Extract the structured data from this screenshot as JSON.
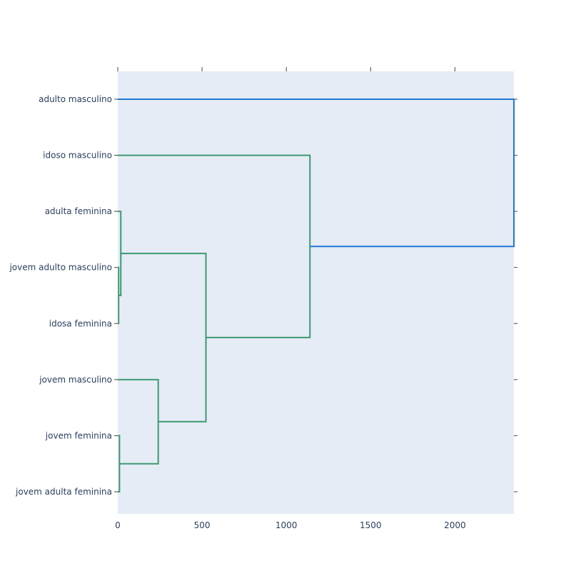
{
  "chart_data": {
    "type": "dendrogram",
    "orientation": "horizontal",
    "title": "",
    "xlabel": "",
    "ylabel": "",
    "xlim": [
      0,
      2350
    ],
    "x_ticks": [
      0,
      500,
      1000,
      1500,
      2000
    ],
    "x_tick_labels": [
      "0",
      "500",
      "1000",
      "1500",
      "2000"
    ],
    "leaves": [
      "adulto masculino",
      "idoso masculino",
      "adulta feminina",
      "jovem adulto masculino",
      "idosa feminina",
      "jovem masculino",
      "jovem feminina",
      "jovem adulta feminina"
    ],
    "links": [
      {
        "color": "green",
        "left": {
          "pos": 3,
          "dist": 0
        },
        "right": {
          "pos": 4,
          "dist": 0
        },
        "height": 5
      },
      {
        "color": "green",
        "left": {
          "pos": 2,
          "dist": 0
        },
        "right": {
          "pos": 3.5,
          "dist": 5
        },
        "height": 18
      },
      {
        "color": "green",
        "left": {
          "pos": 6,
          "dist": 0
        },
        "right": {
          "pos": 7,
          "dist": 0
        },
        "height": 10
      },
      {
        "color": "green",
        "left": {
          "pos": 5,
          "dist": 0
        },
        "right": {
          "pos": 6.5,
          "dist": 10
        },
        "height": 240
      },
      {
        "color": "green",
        "left": {
          "pos": 2.75,
          "dist": 18
        },
        "right": {
          "pos": 5.75,
          "dist": 240
        },
        "height": 523
      },
      {
        "color": "green",
        "left": {
          "pos": 1,
          "dist": 0
        },
        "right": {
          "pos": 4.25,
          "dist": 523
        },
        "height": 1140
      },
      {
        "color": "blue",
        "left": {
          "pos": 0,
          "dist": 0
        },
        "right": {
          "pos": 2.625,
          "dist": 1140
        },
        "height": 2350
      }
    ],
    "colors": {
      "green": "#3d9970",
      "blue": "#1f77d4",
      "plot_bg": "#e5ecf6",
      "axis_text": "#2a3f5f",
      "tick": "#444444"
    },
    "grid": false,
    "legend": "none"
  }
}
